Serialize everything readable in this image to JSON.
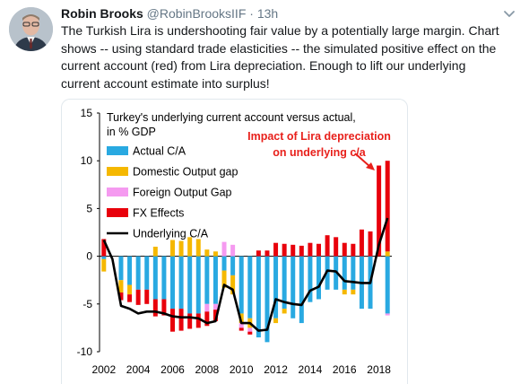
{
  "tweet": {
    "author_name": "Robin Brooks",
    "author_handle": "@RobinBrooksIIF",
    "separator": "·",
    "time": "13h",
    "lines": [
      "The Turkish Lira is undershooting fair value by a potentially large margin. Chart",
      "shows -- using standard trade elasticities -- the simulated positive effect on the",
      "current account (red) from Lira depreciation. Enough to lift our underlying",
      "current account estimate into surplus!"
    ]
  },
  "icons": {
    "avatar": "avatar-photo",
    "menu": "chevron-down-icon"
  },
  "chart_data": {
    "type": "bar",
    "title_lines": [
      "Turkey's underlying current account versus actual,",
      "in % GDP"
    ],
    "ylim": [
      -10,
      15
    ],
    "yticks": [
      -10,
      -5,
      0,
      5,
      10,
      15
    ],
    "xtick_labels": [
      "2002",
      "2004",
      "2006",
      "2008",
      "2010",
      "2012",
      "2014",
      "2016",
      "2018"
    ],
    "categories": [
      "2002 Q1",
      "2002 Q3",
      "2003 Q1",
      "2003 Q3",
      "2004 Q1",
      "2004 Q3",
      "2005 Q1",
      "2005 Q3",
      "2006 Q1",
      "2006 Q3",
      "2007 Q1",
      "2007 Q3",
      "2008 Q1",
      "2008 Q3",
      "2009 Q1",
      "2009 Q3",
      "2010 Q1",
      "2010 Q3",
      "2011 Q1",
      "2011 Q3",
      "2012 Q1",
      "2012 Q3",
      "2013 Q1",
      "2013 Q3",
      "2014 Q1",
      "2014 Q3",
      "2015 Q1",
      "2015 Q3",
      "2016 Q1",
      "2016 Q3",
      "2017 Q1",
      "2017 Q3",
      "2018 Q1",
      "2018 Q3"
    ],
    "series": [
      {
        "name": "Actual C/A",
        "color": "#29a9e1",
        "values": [
          -0.3,
          0,
          -2.5,
          -3,
          -3.5,
          -3.5,
          -4.5,
          -4.5,
          -5.5,
          -5.5,
          -6,
          -6,
          -5,
          -5,
          -1.5,
          -2,
          -6,
          -6.5,
          -8.5,
          -9,
          -6.5,
          -5.5,
          -6.5,
          -7,
          -4.8,
          -4.5,
          -3.5,
          -3.5,
          -3.5,
          -3.5,
          -5.5,
          -5.5,
          0,
          -6
        ]
      },
      {
        "name": "Domestic Output gap",
        "color": "#f5b800",
        "values": [
          -1.3,
          0,
          -1.3,
          -1,
          0,
          0,
          1,
          0,
          1.7,
          1.6,
          2,
          1.8,
          0.7,
          0.5,
          -1.8,
          -2,
          -1,
          -1,
          0,
          0,
          -0.5,
          -0.5,
          0,
          0,
          0,
          0,
          0,
          0,
          -0.5,
          -0.5,
          0,
          0,
          0,
          0.5
        ]
      },
      {
        "name": "Foreign Output Gap",
        "color": "#f59af0",
        "values": [
          0,
          0,
          0,
          0,
          0,
          0,
          0,
          0,
          0,
          0,
          0,
          0,
          -0.8,
          -0.6,
          1.5,
          1.2,
          -0.5,
          -0.4,
          0,
          0,
          0,
          0,
          0,
          0,
          0,
          0,
          0,
          0,
          0,
          0,
          0,
          0,
          0,
          -0.2
        ]
      },
      {
        "name": "FX Effects",
        "color": "#e8000b",
        "values": [
          1.8,
          0,
          -0.8,
          -0.8,
          -1.6,
          -1.5,
          -1.8,
          -1.7,
          -2.4,
          -2.3,
          -1.6,
          -1.5,
          -1.5,
          -1.2,
          0,
          0,
          -0.3,
          -0.3,
          0.6,
          0.6,
          1.4,
          1.3,
          1.2,
          1.1,
          1.4,
          1.3,
          2.2,
          2.0,
          1.4,
          1.3,
          2.8,
          2.6,
          9.5,
          9.5
        ]
      },
      {
        "name": "Underlying C/A",
        "color": "#000000",
        "type": "line",
        "values": [
          1.7,
          -0.3,
          -5.2,
          -5.5,
          -6,
          -5.8,
          -5.8,
          -6,
          -6.3,
          -6.4,
          -6.4,
          -6.5,
          -7,
          -6.8,
          -3,
          -3.5,
          -7,
          -7,
          -7.8,
          -7.7,
          -4.5,
          -4.8,
          -5,
          -5.1,
          -3.6,
          -3.2,
          -1.5,
          -1.6,
          -2.6,
          -2.7,
          -2.8,
          -2.8,
          1.2,
          4
        ]
      }
    ],
    "annotation": {
      "lines": [
        "Impact of Lira depreciation",
        "on underlying c/a"
      ],
      "color": "#e8201b"
    }
  }
}
